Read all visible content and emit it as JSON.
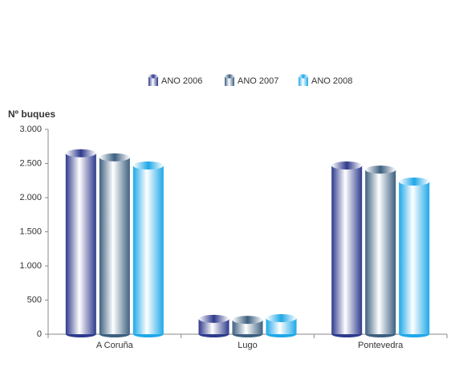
{
  "chart_data": {
    "type": "bar",
    "y_axis_title": "Nº buques",
    "categories": [
      "A Coruña",
      "Lugo",
      "Pontevedra"
    ],
    "series": [
      {
        "name": "ANO 2006",
        "color": "#2e3a8c",
        "values": [
          2650,
          225,
          2470
        ]
      },
      {
        "name": "ANO 2007",
        "color": "#3d6080",
        "values": [
          2590,
          210,
          2410
        ]
      },
      {
        "name": "ANO 2008",
        "color": "#1ea8e8",
        "values": [
          2470,
          235,
          2235
        ]
      }
    ],
    "ylim": [
      0,
      3000
    ],
    "yticks": [
      0,
      500,
      {
        "value": 1000,
        "label": "1.000"
      },
      {
        "value": 1500,
        "label": "1.500"
      },
      {
        "value": 2000,
        "label": "2.000"
      },
      {
        "value": 2500,
        "label": "2.500"
      },
      {
        "value": 3000,
        "label": "3.000"
      }
    ],
    "legend": "top"
  }
}
